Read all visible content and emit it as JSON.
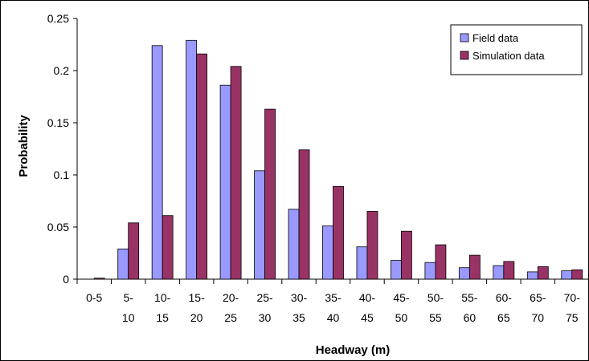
{
  "chart_data": {
    "type": "bar",
    "title": "",
    "xlabel": "Headway (m)",
    "ylabel": "Probability",
    "ylim": [
      0,
      0.25
    ],
    "yticks": [
      0,
      0.05,
      0.1,
      0.15,
      0.2,
      0.25
    ],
    "ytick_labels": [
      "0",
      "0.05",
      "0.1",
      "0.15",
      "0.2",
      "0.25"
    ],
    "categories": [
      [
        "0-5"
      ],
      [
        "5-",
        "10"
      ],
      [
        "10-",
        "15"
      ],
      [
        "15-",
        "20"
      ],
      [
        "20-",
        "25"
      ],
      [
        "25-",
        "30"
      ],
      [
        "30-",
        "35"
      ],
      [
        "35-",
        "40"
      ],
      [
        "40-",
        "45"
      ],
      [
        "45-",
        "50"
      ],
      [
        "50-",
        "55"
      ],
      [
        "55-",
        "60"
      ],
      [
        "60-",
        "65"
      ],
      [
        "65-",
        "70"
      ],
      [
        "70-",
        "75"
      ]
    ],
    "series": [
      {
        "name": "Field data",
        "color": "#9999ff",
        "values": [
          0,
          0.029,
          0.224,
          0.229,
          0.186,
          0.104,
          0.067,
          0.051,
          0.031,
          0.018,
          0.016,
          0.011,
          0.013,
          0.007,
          0.008
        ]
      },
      {
        "name": "Simulation data",
        "color": "#993366",
        "values": [
          0.001,
          0.054,
          0.061,
          0.216,
          0.204,
          0.163,
          0.124,
          0.089,
          0.065,
          0.046,
          0.033,
          0.023,
          0.017,
          0.012,
          0.009
        ]
      }
    ],
    "grid": false,
    "legend_position": "top-right"
  }
}
